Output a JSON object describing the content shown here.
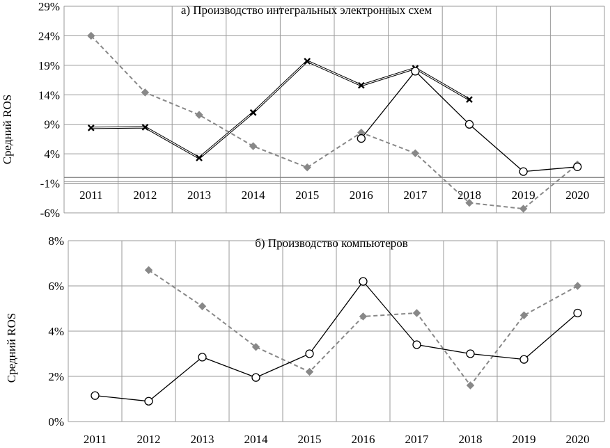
{
  "chart_data": [
    {
      "type": "line",
      "title": "а) Производство интегральных электронных схем",
      "ylabel": "Средний ROS",
      "xlabel": "",
      "ylim": [
        -6,
        29
      ],
      "yticks": [
        "-6%",
        "-1%",
        "4%",
        "9%",
        "14%",
        "19%",
        "24%",
        "29%"
      ],
      "ytick_values": [
        -6,
        -1,
        4,
        9,
        14,
        19,
        24,
        29
      ],
      "categories": [
        "2011",
        "2012",
        "2013",
        "2014",
        "2015",
        "2016",
        "2017",
        "2018",
        "2019",
        "2020"
      ],
      "grid": true,
      "series": [
        {
          "values": [
            24.0,
            14.4,
            10.6,
            5.3,
            1.7,
            7.6,
            4.1,
            -4.3,
            -5.3,
            2.2
          ],
          "color": "#888888",
          "line": "dashed",
          "marker": "diamond"
        },
        {
          "values": [
            8.4,
            8.5,
            3.3,
            11.0,
            19.7,
            15.6,
            18.5,
            13.2,
            null,
            null
          ],
          "color": "#000000",
          "line": "double",
          "marker": "x"
        },
        {
          "values": [
            null,
            null,
            null,
            null,
            null,
            6.6,
            18.0,
            9.0,
            1.0,
            1.8
          ],
          "color": "#000000",
          "line": "solid",
          "marker": "circle-open"
        }
      ]
    },
    {
      "type": "line",
      "title": "б) Производство компьютеров",
      "ylabel": "Средний  ROS",
      "xlabel": "",
      "ylim": [
        0,
        8
      ],
      "yticks": [
        "0%",
        "2%",
        "4%",
        "6%",
        "8%"
      ],
      "ytick_values": [
        0,
        2,
        4,
        6,
        8
      ],
      "categories": [
        "2011",
        "2012",
        "2013",
        "2014",
        "2015",
        "2016",
        "2017",
        "2018",
        "2019",
        "2020"
      ],
      "grid": true,
      "series": [
        {
          "values": [
            null,
            6.7,
            5.1,
            3.3,
            2.2,
            4.65,
            4.8,
            1.6,
            4.7,
            6.0
          ],
          "color": "#888888",
          "line": "dashed",
          "marker": "diamond"
        },
        {
          "values": [
            1.15,
            0.9,
            2.85,
            1.95,
            3.0,
            6.2,
            3.4,
            3.0,
            2.75,
            4.8
          ],
          "color": "#000000",
          "line": "solid",
          "marker": "circle-open"
        }
      ]
    }
  ]
}
